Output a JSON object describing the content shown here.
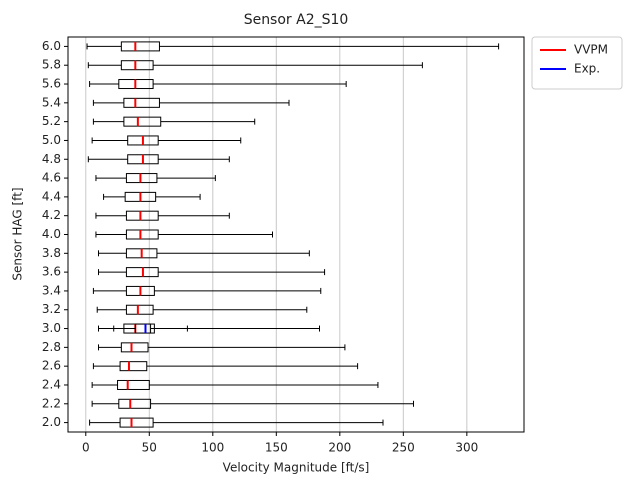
{
  "chart_data": {
    "type": "boxplot",
    "orientation": "horizontal",
    "title": "Sensor A2_S10",
    "xlabel": "Velocity Magnitude [ft/s]",
    "ylabel": "Sensor HAG [ft]",
    "categories": [
      "2.0",
      "2.2",
      "2.4",
      "2.6",
      "2.8",
      "3.0",
      "3.2",
      "3.4",
      "3.6",
      "3.8",
      "4.0",
      "4.2",
      "4.4",
      "4.6",
      "4.8",
      "5.0",
      "5.2",
      "5.4",
      "5.6",
      "5.8",
      "6.0"
    ],
    "series": [
      {
        "name": "VVPM",
        "color": "#ff0000",
        "values": [
          {
            "low": 3,
            "q1": 27,
            "median": 36,
            "q3": 53,
            "high": 234
          },
          {
            "low": 5,
            "q1": 26,
            "median": 35,
            "q3": 51,
            "high": 258
          },
          {
            "low": 5,
            "q1": 25,
            "median": 33,
            "q3": 50,
            "high": 230
          },
          {
            "low": 6,
            "q1": 27,
            "median": 34,
            "q3": 48,
            "high": 214
          },
          {
            "low": 10,
            "q1": 28,
            "median": 36,
            "q3": 49,
            "high": 204
          },
          {
            "low": 10,
            "q1": 30,
            "median": 39,
            "q3": 51,
            "high": 184
          },
          {
            "low": 9,
            "q1": 32,
            "median": 41,
            "q3": 53,
            "high": 174
          },
          {
            "low": 6,
            "q1": 32,
            "median": 43,
            "q3": 54,
            "high": 185
          },
          {
            "low": 10,
            "q1": 32,
            "median": 45,
            "q3": 57,
            "high": 188
          },
          {
            "low": 10,
            "q1": 32,
            "median": 44,
            "q3": 56,
            "high": 176
          },
          {
            "low": 8,
            "q1": 32,
            "median": 43,
            "q3": 57,
            "high": 147
          },
          {
            "low": 8,
            "q1": 32,
            "median": 43,
            "q3": 57,
            "high": 113
          },
          {
            "low": 14,
            "q1": 31,
            "median": 43,
            "q3": 55,
            "high": 90
          },
          {
            "low": 8,
            "q1": 32,
            "median": 43,
            "q3": 56,
            "high": 102
          },
          {
            "low": 2,
            "q1": 33,
            "median": 45,
            "q3": 57,
            "high": 113
          },
          {
            "low": 5,
            "q1": 33,
            "median": 45,
            "q3": 57,
            "high": 122
          },
          {
            "low": 6,
            "q1": 30,
            "median": 41,
            "q3": 59,
            "high": 133
          },
          {
            "low": 6,
            "q1": 30,
            "median": 39,
            "q3": 58,
            "high": 160
          },
          {
            "low": 3,
            "q1": 26,
            "median": 39,
            "q3": 53,
            "high": 205
          },
          {
            "low": 2,
            "q1": 28,
            "median": 39,
            "q3": 53,
            "high": 265
          },
          {
            "low": 1,
            "q1": 28,
            "median": 39,
            "q3": 58,
            "high": 325
          }
        ]
      },
      {
        "name": "Exp.",
        "color": "#0000ff",
        "values": [
          null,
          null,
          null,
          null,
          null,
          {
            "low": 22,
            "q1": 39,
            "median": 47,
            "q3": 54,
            "high": 80
          },
          null,
          null,
          null,
          null,
          null,
          null,
          null,
          null,
          null,
          null,
          null,
          null,
          null,
          null,
          null
        ]
      }
    ],
    "xlim": [
      -14,
      345
    ],
    "xticks": [
      0,
      50,
      100,
      150,
      200,
      250,
      300
    ],
    "grid": true,
    "legend": "outside upper right"
  }
}
